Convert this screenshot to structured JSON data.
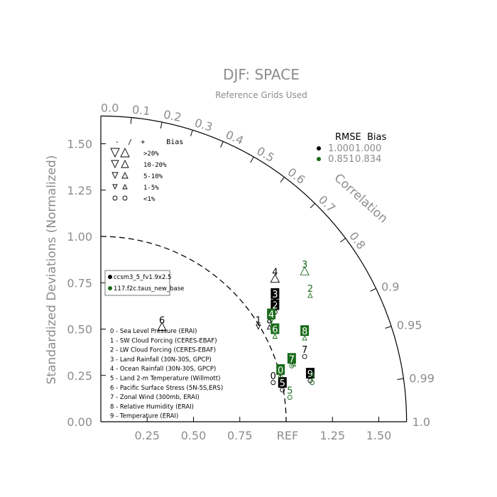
{
  "chart_data": {
    "type": "scatter",
    "subtype": "taylor-diagram",
    "title": "DJF: SPACE",
    "subtitle": "Reference Grids Used",
    "ylabel": "Standardized Deviations (Normalized)",
    "arc_label": "Correlation",
    "ref_label": "REF",
    "x_ticks": [
      "0.25",
      "0.50",
      "0.75",
      "1.25",
      "1.50"
    ],
    "y_ticks": [
      "0.00",
      "0.25",
      "0.50",
      "0.75",
      "1.00",
      "1.25",
      "1.50"
    ],
    "corr_ticks": [
      "0.0",
      "0.1",
      "0.2",
      "0.3",
      "0.4",
      "0.5",
      "0.6",
      "0.7",
      "0.8",
      "0.9",
      "0.95",
      "0.99",
      "1.0"
    ],
    "axis_max": 1.65,
    "bias_legend": {
      "header": "-  /  +     Bias",
      "rows": [
        ">20%",
        "10-20%",
        "5-10%",
        "1-5%",
        "<1%"
      ]
    },
    "rmse_header": "RMSE  Bias",
    "rmse_rows": [
      {
        "rmse": "1.000",
        "bias": "1.000",
        "color": "#000000"
      },
      {
        "rmse": "0.851",
        "bias": "0.834",
        "color": "#1a6b1a"
      }
    ],
    "case_legend": [
      {
        "name": "ccsm3_5_fv1.9x2.5",
        "color": "#000000"
      },
      {
        "name": "117.f2c.taus_new_base",
        "color": "#1a6b1a"
      }
    ],
    "variables": [
      "0 - Sea Level Pressure (ERAI)",
      "1 - SW Cloud Forcing (CERES-EBAF)",
      "2 - LW Cloud Forcing (CERES-EBAF)",
      "3 - Land Rainfall (30N-30S, GPCP)",
      "4 - Ocean Rainfall (30N-30S, GPCP)",
      "5 - Land 2-m Temperature (Willmott)",
      "6 - Pacific Surface Stress (5N-5S,ERS)",
      "7 - Zonal Wind (300mb, ERAI)",
      "8 - Relative Humidity (ERAI)",
      "9 - Temperature (ERAI)"
    ],
    "series": [
      {
        "name": "ccsm3_5_fv1.9x2.5",
        "color": "#000000",
        "points": [
          {
            "id": "0",
            "x": 0.93,
            "y": 0.25,
            "boxed": false,
            "marker": "circle"
          },
          {
            "id": "1",
            "x": 0.85,
            "y": 0.55,
            "boxed": false,
            "marker": "down-small"
          },
          {
            "id": "2",
            "x": 0.94,
            "y": 0.63,
            "boxed": true,
            "marker": "circle"
          },
          {
            "id": "3",
            "x": 0.94,
            "y": 0.69,
            "boxed": true,
            "marker": "circle"
          },
          {
            "id": "4",
            "x": 0.94,
            "y": 0.81,
            "boxed": false,
            "marker": "up-large"
          },
          {
            "id": "5",
            "x": 0.98,
            "y": 0.21,
            "boxed": true,
            "marker": "circle"
          },
          {
            "id": "6",
            "x": 0.33,
            "y": 0.55,
            "boxed": false,
            "marker": "up-large"
          },
          {
            "id": "7",
            "x": 1.1,
            "y": 0.39,
            "boxed": false,
            "marker": "circle"
          },
          {
            "id": "8",
            "x": 0.91,
            "y": 0.55,
            "boxed": false,
            "marker": "up-small"
          },
          {
            "id": "9",
            "x": 1.13,
            "y": 0.26,
            "boxed": true,
            "marker": "circle"
          }
        ]
      },
      {
        "name": "117.f2c.taus_new_base",
        "color": "#1a6b1a",
        "points": [
          {
            "id": "0",
            "x": 0.97,
            "y": 0.28,
            "boxed": true,
            "marker": "circle"
          },
          {
            "id": "1",
            "x": 1.04,
            "y": 0.35,
            "boxed": false,
            "marker": "triangle"
          },
          {
            "id": "2",
            "x": 1.13,
            "y": 0.72,
            "boxed": false,
            "marker": "up-small"
          },
          {
            "id": "3",
            "x": 1.1,
            "y": 0.85,
            "boxed": false,
            "marker": "up-large"
          },
          {
            "id": "4",
            "x": 0.92,
            "y": 0.58,
            "boxed": true,
            "marker": "down-small"
          },
          {
            "id": "5",
            "x": 1.02,
            "y": 0.17,
            "boxed": false,
            "marker": "circle"
          },
          {
            "id": "6",
            "x": 0.94,
            "y": 0.5,
            "boxed": true,
            "marker": "up-small"
          },
          {
            "id": "7",
            "x": 1.03,
            "y": 0.34,
            "boxed": true,
            "marker": "circle"
          },
          {
            "id": "8",
            "x": 1.1,
            "y": 0.49,
            "boxed": true,
            "marker": "up-small"
          },
          {
            "id": "9",
            "x": 1.14,
            "y": 0.25,
            "boxed": false,
            "marker": "circle"
          }
        ]
      }
    ]
  }
}
